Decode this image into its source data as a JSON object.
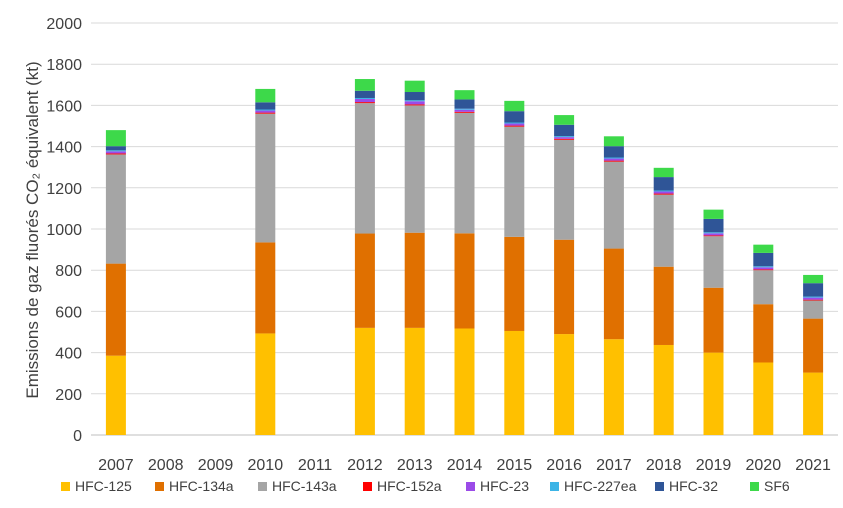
{
  "chart_data": {
    "type": "bar",
    "stacked": true,
    "ylabel": "Emissions de gaz fluorés CO₂ équivalent (kt)",
    "ylim": [
      0,
      2000
    ],
    "yticks": [
      0,
      200,
      400,
      600,
      800,
      1000,
      1200,
      1400,
      1600,
      1800,
      2000
    ],
    "grid": true,
    "legend_position": "bottom",
    "categories": [
      "2007",
      "2008",
      "2009",
      "2010",
      "2011",
      "2012",
      "2013",
      "2014",
      "2015",
      "2016",
      "2017",
      "2018",
      "2019",
      "2020",
      "2021"
    ],
    "series": [
      {
        "name": "HFC-125",
        "color": "#FFC000",
        "values": [
          385,
          0,
          0,
          493,
          0,
          520,
          520,
          517,
          505,
          490,
          465,
          437,
          400,
          352,
          303
        ]
      },
      {
        "name": "HFC-134a",
        "color": "#E07000",
        "values": [
          447,
          0,
          0,
          442,
          0,
          458,
          462,
          462,
          457,
          458,
          440,
          380,
          315,
          283,
          262
        ]
      },
      {
        "name": "HFC-143a",
        "color": "#A5A5A5",
        "values": [
          530,
          0,
          0,
          625,
          0,
          633,
          618,
          585,
          535,
          485,
          422,
          350,
          250,
          165,
          88
        ]
      },
      {
        "name": "HFC-152a",
        "color": "#FF0000",
        "values": [
          5,
          0,
          0,
          5,
          0,
          5,
          5,
          5,
          5,
          5,
          5,
          5,
          4,
          4,
          4
        ]
      },
      {
        "name": "HFC-23",
        "color": "#9B4BE8",
        "values": [
          10,
          0,
          0,
          10,
          0,
          15,
          15,
          10,
          10,
          8,
          10,
          10,
          10,
          10,
          10
        ]
      },
      {
        "name": "HFC-227ea",
        "color": "#3CB4E6",
        "values": [
          5,
          0,
          0,
          5,
          0,
          5,
          5,
          5,
          5,
          5,
          5,
          5,
          5,
          5,
          5
        ]
      },
      {
        "name": "HFC-32",
        "color": "#2F5597",
        "values": [
          20,
          0,
          0,
          35,
          0,
          35,
          40,
          45,
          55,
          55,
          55,
          65,
          65,
          65,
          65
        ]
      },
      {
        "name": "SF6",
        "color": "#3DD94A",
        "values": [
          78,
          0,
          0,
          65,
          0,
          57,
          55,
          45,
          50,
          47,
          48,
          45,
          45,
          40,
          40
        ]
      }
    ]
  }
}
